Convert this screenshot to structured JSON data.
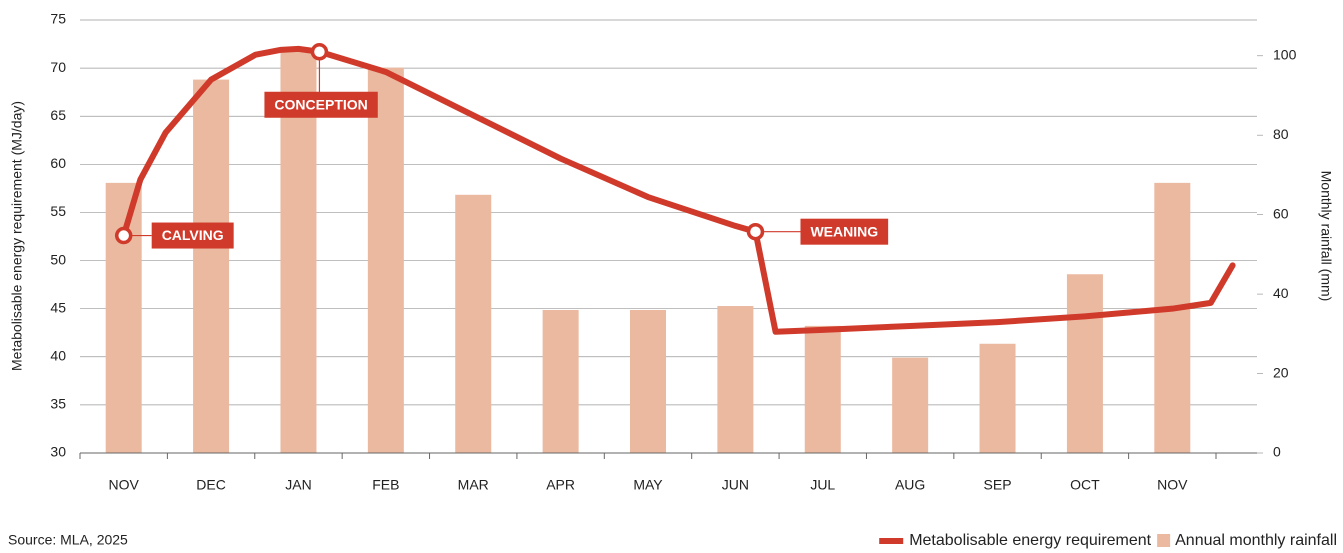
{
  "chart_data": {
    "type": "bar_line",
    "categories": [
      "NOV",
      "DEC",
      "JAN",
      "FEB",
      "MAR",
      "APR",
      "MAY",
      "JUN",
      "JUL",
      "AUG",
      "SEP",
      "OCT",
      "NOV"
    ],
    "ylabel": "Metabolisable energy requirement (MJ/day)",
    "y2label": "Monthly rainfall (mm)",
    "ylim": [
      30,
      75
    ],
    "yticks": [
      30,
      35,
      40,
      45,
      50,
      55,
      60,
      65,
      70,
      75
    ],
    "y2lim": [
      0,
      109
    ],
    "y2ticks": [
      0,
      20,
      40,
      60,
      80,
      100
    ],
    "grid": true,
    "series": [
      {
        "name": "Metabolisable energy requirement",
        "type": "line",
        "color": "#d03a2b",
        "x": [
          0,
          0.19,
          0.48,
          1,
          1.51,
          1.8,
          2,
          2.24,
          3,
          4,
          5,
          6,
          7,
          7.23,
          7.46,
          8,
          9,
          10,
          11,
          12,
          12.44,
          12.69
        ],
        "values": [
          52.6,
          58.4,
          63.3,
          68.8,
          71.4,
          71.9,
          72.0,
          71.7,
          69.6,
          65.1,
          60.6,
          56.6,
          53.6,
          53.0,
          42.6,
          42.8,
          43.2,
          43.6,
          44.2,
          45.0,
          45.6,
          49.5
        ]
      },
      {
        "name": "Annual monthly rainfall",
        "type": "bar",
        "axis": "y2",
        "color": "#ebb9a0",
        "values": [
          68,
          94,
          101,
          97,
          65,
          36,
          36,
          37,
          32,
          24,
          27.5,
          45,
          68
        ]
      }
    ],
    "annotations": [
      {
        "text": "CALVING",
        "x": 0,
        "y": 52.6
      },
      {
        "text": "CONCEPTION",
        "x": 2.24,
        "y": 71.7
      },
      {
        "text": "WEANING",
        "x": 7.23,
        "y": 53.0
      }
    ],
    "source": "Source: MLA, 2025"
  }
}
